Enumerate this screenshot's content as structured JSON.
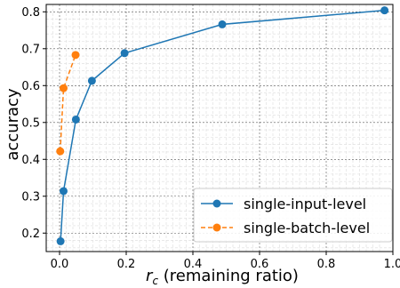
{
  "chart_data": {
    "type": "line",
    "xlabel_var": "r",
    "xlabel_sub": "c",
    "xlabel_rest": " (remaining ratio)",
    "ylabel": "accuracy",
    "xlim": [
      -0.04,
      1.0
    ],
    "ylim": [
      0.15,
      0.82
    ],
    "xticks": [
      0.0,
      0.2,
      0.4,
      0.6,
      0.8,
      1.0
    ],
    "xtick_labels": [
      "0.0",
      "0.2",
      "0.4",
      "0.6",
      "0.8",
      "1.0"
    ],
    "yticks": [
      0.2,
      0.3,
      0.4,
      0.5,
      0.6,
      0.7,
      0.8
    ],
    "ytick_labels": [
      "0.2",
      "0.3",
      "0.4",
      "0.5",
      "0.6",
      "0.7",
      "0.8"
    ],
    "grid": true,
    "legend_position": "bottom-right",
    "series": [
      {
        "name": "single-input-level",
        "color": "#1f77b4",
        "linestyle": "solid",
        "marker": "circle",
        "x": [
          0.003,
          0.012,
          0.049,
          0.097,
          0.195,
          0.488,
          0.975
        ],
        "y": [
          0.178,
          0.314,
          0.508,
          0.613,
          0.688,
          0.766,
          0.804
        ]
      },
      {
        "name": "single-batch-level",
        "color": "#ff7f0e",
        "linestyle": "dashed",
        "marker": "circle",
        "x": [
          0.002,
          0.012,
          0.048
        ],
        "y": [
          0.422,
          0.593,
          0.683
        ]
      }
    ]
  }
}
